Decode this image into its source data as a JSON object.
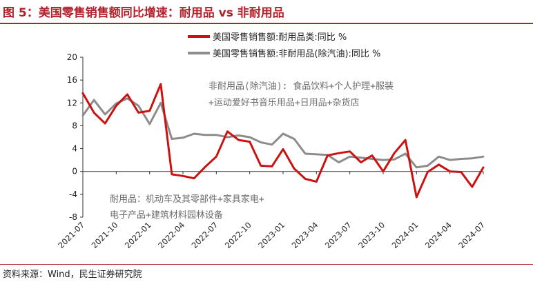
{
  "header": {
    "title": "图 5：美国零售销售额同比增速：耐用品 vs 非耐用品"
  },
  "footer": {
    "source": "资料来源：Wind，民生证券研究院"
  },
  "colors": {
    "accent": "#b2202a",
    "durable": "#cc1111",
    "nondurable": "#8c8c8c",
    "note": "#6b6b6b"
  },
  "chart_data": {
    "type": "line",
    "title": "",
    "xlabel": "",
    "ylabel": "",
    "ylim": [
      -8,
      20
    ],
    "yticks": [
      -8,
      -4,
      0,
      4,
      8,
      12,
      16,
      20
    ],
    "grid": false,
    "legend_position": "top",
    "x": [
      "2021-07",
      "2021-08",
      "2021-09",
      "2021-10",
      "2021-11",
      "2021-12",
      "2022-01",
      "2022-02",
      "2022-03",
      "2022-04",
      "2022-05",
      "2022-06",
      "2022-07",
      "2022-08",
      "2022-09",
      "2022-10",
      "2022-11",
      "2022-12",
      "2023-01",
      "2023-02",
      "2023-03",
      "2023-04",
      "2023-05",
      "2023-06",
      "2023-07",
      "2023-08",
      "2023-09",
      "2023-10",
      "2023-11",
      "2023-12",
      "2024-01",
      "2024-02",
      "2024-03",
      "2024-04",
      "2024-05",
      "2024-06",
      "2024-07"
    ],
    "xtick_labels": [
      "2021-07",
      "2021-10",
      "2022-01",
      "2022-04",
      "2022-07",
      "2022-10",
      "2023-01",
      "2023-04",
      "2023-07",
      "2023-10",
      "2024-01",
      "2024-04",
      "2024-07"
    ],
    "series": [
      {
        "name": "美国零售销售额:耐用品类:同比 %",
        "color": "#cc1111",
        "values": [
          13.7,
          10.3,
          8.4,
          11.5,
          13.5,
          10.3,
          10.6,
          15.3,
          -0.5,
          -0.8,
          -1.2,
          0.8,
          2.6,
          7.0,
          5.5,
          5.2,
          1.0,
          0.9,
          3.9,
          0.5,
          -1.3,
          -1.8,
          2.8,
          3.2,
          3.5,
          1.6,
          2.8,
          0.0,
          3.2,
          5.5,
          -4.5,
          -0.1,
          1.2,
          0.0,
          -0.1,
          -2.7,
          0.7
        ]
      },
      {
        "name": "美国零售销售额:非耐用品(除汽油):同比 %",
        "color": "#8c8c8c",
        "values": [
          9.8,
          12.5,
          10.0,
          11.9,
          12.8,
          11.5,
          8.3,
          12.0,
          5.7,
          5.9,
          6.6,
          6.4,
          6.4,
          6.0,
          6.3,
          6.0,
          5.1,
          4.7,
          6.6,
          5.7,
          3.1,
          3.0,
          2.9,
          1.6,
          2.6,
          2.4,
          2.2,
          2.0,
          2.1,
          3.1,
          0.7,
          1.0,
          2.6,
          2.0,
          2.2,
          2.3,
          2.6
        ]
      }
    ],
    "annotations": [
      {
        "lines": [
          "非耐用品(除汽油):  食品饮料+个人护理+服装",
          "+运动爱好书音乐用品+日用品+杂货店"
        ]
      },
      {
        "lines": [
          "耐用品：机动车及其零部件+家具家电+",
          "电子产品+建筑材料园林设备"
        ]
      }
    ]
  }
}
